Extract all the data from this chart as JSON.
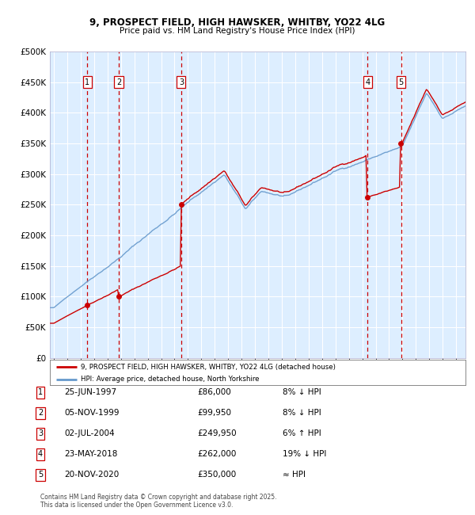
{
  "title_line1": "9, PROSPECT FIELD, HIGH HAWSKER, WHITBY, YO22 4LG",
  "title_line2": "Price paid vs. HM Land Registry's House Price Index (HPI)",
  "ylabel_ticks": [
    "£0",
    "£50K",
    "£100K",
    "£150K",
    "£200K",
    "£250K",
    "£300K",
    "£350K",
    "£400K",
    "£450K",
    "£500K"
  ],
  "ytick_values": [
    0,
    50000,
    100000,
    150000,
    200000,
    250000,
    300000,
    350000,
    400000,
    450000,
    500000
  ],
  "xmin": 1994.7,
  "xmax": 2025.7,
  "ymin": 0,
  "ymax": 500000,
  "transactions": [
    {
      "label": "1",
      "date": 1997.48,
      "price": 86000
    },
    {
      "label": "2",
      "date": 1999.84,
      "price": 99950
    },
    {
      "label": "3",
      "date": 2004.5,
      "price": 249950
    },
    {
      "label": "4",
      "date": 2018.39,
      "price": 262000
    },
    {
      "label": "5",
      "date": 2020.9,
      "price": 350000
    }
  ],
  "house_color": "#cc0000",
  "hpi_color": "#6699cc",
  "bg_color": "#ddeeff",
  "grid_color": "#ffffff",
  "vline_color": "#cc0000",
  "legend_line1": "9, PROSPECT FIELD, HIGH HAWSKER, WHITBY, YO22 4LG (detached house)",
  "legend_line2": "HPI: Average price, detached house, North Yorkshire",
  "table_entries": [
    {
      "num": "1",
      "date": "25-JUN-1997",
      "price": "£86,000",
      "hpi": "8% ↓ HPI"
    },
    {
      "num": "2",
      "date": "05-NOV-1999",
      "price": "£99,950",
      "hpi": "8% ↓ HPI"
    },
    {
      "num": "3",
      "date": "02-JUL-2004",
      "price": "£249,950",
      "hpi": "6% ↑ HPI"
    },
    {
      "num": "4",
      "date": "23-MAY-2018",
      "price": "£262,000",
      "hpi": "19% ↓ HPI"
    },
    {
      "num": "5",
      "date": "20-NOV-2020",
      "price": "£350,000",
      "hpi": "≈ HPI"
    }
  ],
  "footnote": "Contains HM Land Registry data © Crown copyright and database right 2025.\nThis data is licensed under the Open Government Licence v3.0."
}
